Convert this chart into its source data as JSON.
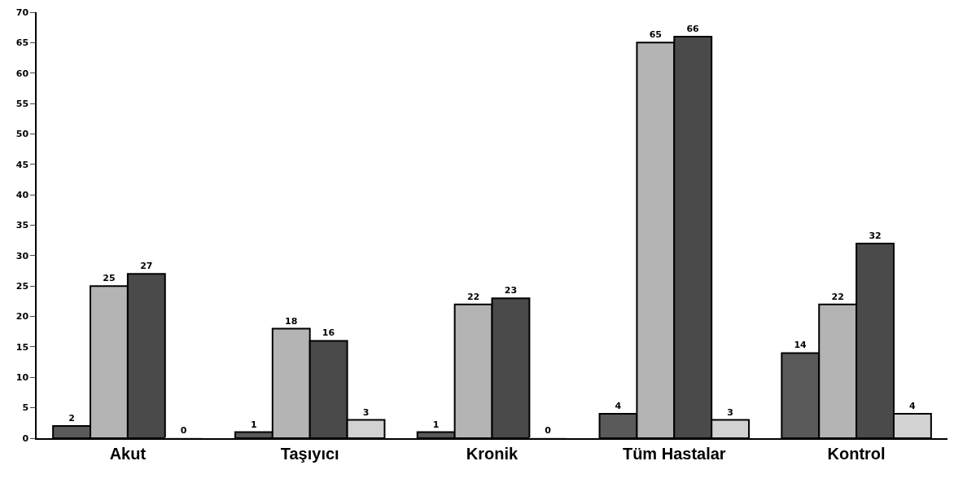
{
  "chart_data": {
    "type": "bar",
    "categories": [
      "Akut",
      "Taşıyıcı",
      "Kronik",
      "Tüm Hastalar",
      "Kontrol"
    ],
    "series": [
      {
        "color": "#5a5a5a",
        "values": [
          2,
          1,
          1,
          4,
          14
        ]
      },
      {
        "color": "#b4b4b4",
        "values": [
          25,
          18,
          22,
          65,
          22
        ]
      },
      {
        "color": "#4a4a4a",
        "values": [
          27,
          16,
          23,
          66,
          32
        ]
      },
      {
        "color": "#d2d2d2",
        "values": [
          0,
          3,
          0,
          3,
          4
        ]
      }
    ],
    "ylim": [
      0,
      70
    ],
    "yticks": [
      0,
      5,
      10,
      15,
      20,
      25,
      30,
      35,
      40,
      45,
      50,
      55,
      60,
      65,
      70
    ],
    "grid": false,
    "data_labels": true
  }
}
